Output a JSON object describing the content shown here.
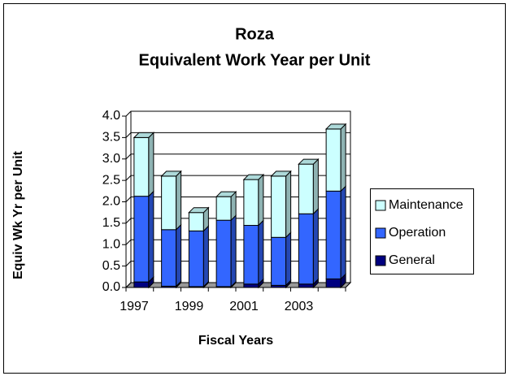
{
  "chart_data": {
    "type": "bar3d_stacked",
    "title": "Roza",
    "subtitle": "Equivalent Work Year per Unit",
    "x_label": "Fiscal Years",
    "y_label": "Equiv Wk Yr per Unit",
    "categories": [
      "1997",
      null,
      "1999",
      null,
      "2001",
      null,
      "2003",
      null
    ],
    "series": [
      {
        "name": "General",
        "color": "#000080",
        "values": [
          0.13,
          0.03,
          0.02,
          0.02,
          0.08,
          0.05,
          0.08,
          0.2
        ]
      },
      {
        "name": "Operation",
        "color": "#3366ff",
        "values": [
          2.0,
          1.32,
          1.3,
          1.55,
          1.37,
          1.12,
          1.64,
          2.05
        ]
      },
      {
        "name": "Maintenance",
        "color": "#ccffff",
        "values": [
          1.37,
          1.25,
          0.43,
          0.55,
          1.07,
          1.43,
          1.16,
          1.45
        ]
      }
    ],
    "ylim": [
      0,
      4
    ],
    "yticks": [
      {
        "value": 0,
        "label": "0.0"
      },
      0.5,
      {
        "value": 1,
        "label": "1.0"
      },
      1.5,
      {
        "value": 2,
        "label": "2.0"
      },
      2.5,
      {
        "value": 3,
        "label": "3.0"
      },
      3.5,
      {
        "value": 4,
        "label": "4.0"
      }
    ],
    "legend": "right"
  }
}
